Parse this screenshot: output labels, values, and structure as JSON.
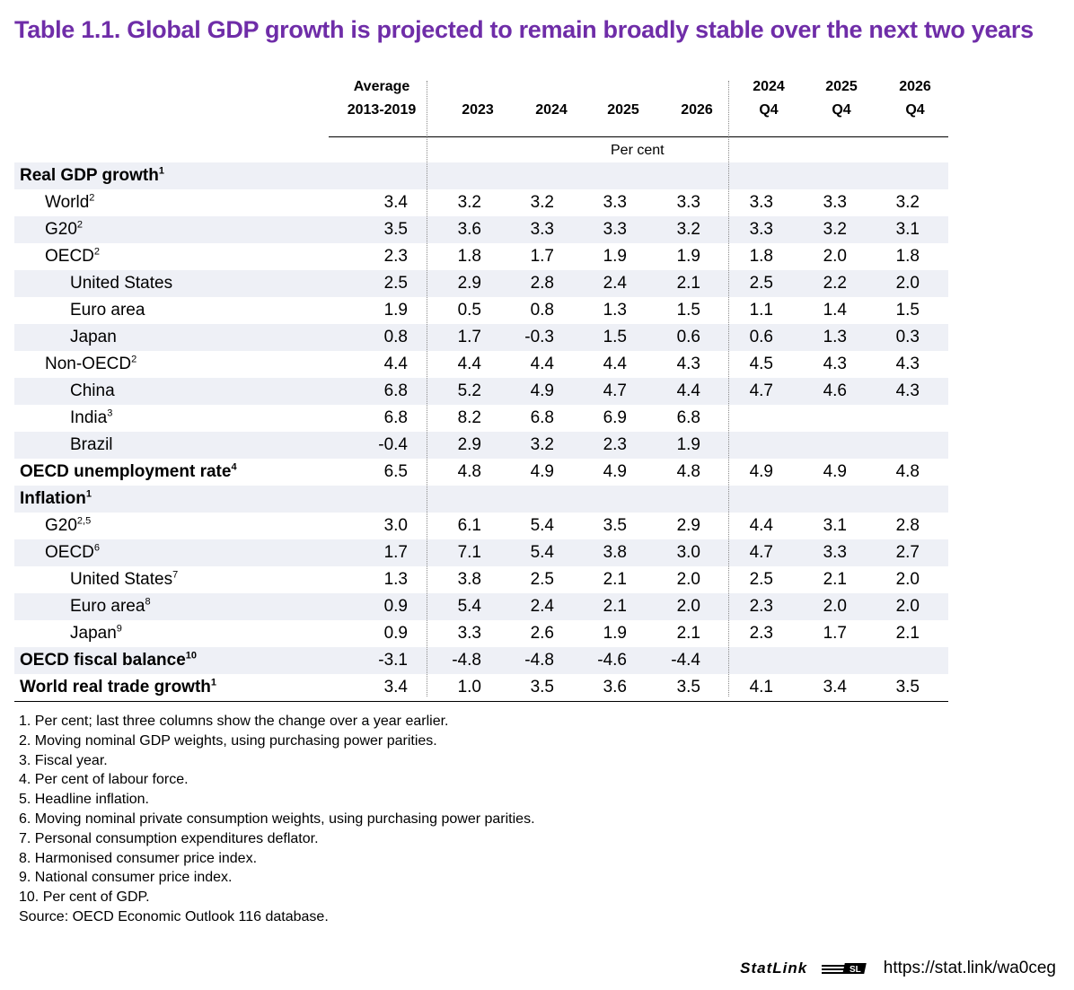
{
  "title": "Table 1.1. Global GDP growth is projected to remain broadly stable over the next two years",
  "columns": [
    {
      "l1": "Average",
      "l2": "2013-2019"
    },
    {
      "l1": "",
      "l2": "2023"
    },
    {
      "l1": "",
      "l2": "2024"
    },
    {
      "l1": "",
      "l2": "2025"
    },
    {
      "l1": "",
      "l2": "2026"
    },
    {
      "l1": "2024",
      "l2": "Q4"
    },
    {
      "l1": "2025",
      "l2": "Q4"
    },
    {
      "l1": "2026",
      "l2": "Q4"
    }
  ],
  "unit_label": "Per cent",
  "rows": [
    {
      "label": "Real GDP growth",
      "sup": "1",
      "level": 0,
      "bold": true,
      "values": [
        "",
        "",
        "",
        "",
        "",
        "",
        "",
        ""
      ]
    },
    {
      "label": "World",
      "sup": "2",
      "level": 1,
      "bold": false,
      "values": [
        "3.4",
        "3.2",
        "3.2",
        "3.3",
        "3.3",
        "3.3",
        "3.3",
        "3.2"
      ]
    },
    {
      "label": "G20",
      "sup": "2",
      "level": 1,
      "bold": false,
      "values": [
        "3.5",
        "3.6",
        "3.3",
        "3.3",
        "3.2",
        "3.3",
        "3.2",
        "3.1"
      ]
    },
    {
      "label": "OECD",
      "sup": "2",
      "level": 1,
      "bold": false,
      "values": [
        "2.3",
        "1.8",
        "1.7",
        "1.9",
        "1.9",
        "1.8",
        "2.0",
        "1.8"
      ]
    },
    {
      "label": "United States",
      "sup": "",
      "level": 2,
      "bold": false,
      "values": [
        "2.5",
        "2.9",
        "2.8",
        "2.4",
        "2.1",
        "2.5",
        "2.2",
        "2.0"
      ]
    },
    {
      "label": "Euro area",
      "sup": "",
      "level": 2,
      "bold": false,
      "values": [
        "1.9",
        "0.5",
        "0.8",
        "1.3",
        "1.5",
        "1.1",
        "1.4",
        "1.5"
      ]
    },
    {
      "label": "Japan",
      "sup": "",
      "level": 2,
      "bold": false,
      "values": [
        "0.8",
        "1.7",
        "-0.3",
        "1.5",
        "0.6",
        "0.6",
        "1.3",
        "0.3"
      ]
    },
    {
      "label": "Non-OECD",
      "sup": "2",
      "level": 1,
      "bold": false,
      "values": [
        "4.4",
        "4.4",
        "4.4",
        "4.4",
        "4.3",
        "4.5",
        "4.3",
        "4.3"
      ]
    },
    {
      "label": "China",
      "sup": "",
      "level": 2,
      "bold": false,
      "values": [
        "6.8",
        "5.2",
        "4.9",
        "4.7",
        "4.4",
        "4.7",
        "4.6",
        "4.3"
      ]
    },
    {
      "label": "India",
      "sup": "3",
      "level": 2,
      "bold": false,
      "values": [
        "6.8",
        "8.2",
        "6.8",
        "6.9",
        "6.8",
        "",
        "",
        ""
      ]
    },
    {
      "label": "Brazil",
      "sup": "",
      "level": 2,
      "bold": false,
      "values": [
        "-0.4",
        "2.9",
        "3.2",
        "2.3",
        "1.9",
        "",
        "",
        ""
      ]
    },
    {
      "label": "OECD unemployment rate",
      "sup": "4",
      "level": 0,
      "bold": true,
      "values": [
        "6.5",
        "4.8",
        "4.9",
        "4.9",
        "4.8",
        "4.9",
        "4.9",
        "4.8"
      ]
    },
    {
      "label": "Inflation",
      "sup": "1",
      "level": 0,
      "bold": true,
      "values": [
        "",
        "",
        "",
        "",
        "",
        "",
        "",
        ""
      ]
    },
    {
      "label": "G20",
      "sup": "2,5",
      "level": 1,
      "bold": false,
      "values": [
        "3.0",
        "6.1",
        "5.4",
        "3.5",
        "2.9",
        "4.4",
        "3.1",
        "2.8"
      ]
    },
    {
      "label": "OECD",
      "sup": "6",
      "level": 1,
      "bold": false,
      "values": [
        "1.7",
        "7.1",
        "5.4",
        "3.8",
        "3.0",
        "4.7",
        "3.3",
        "2.7"
      ]
    },
    {
      "label": "United States",
      "sup": "7",
      "level": 2,
      "bold": false,
      "values": [
        "1.3",
        "3.8",
        "2.5",
        "2.1",
        "2.0",
        "2.5",
        "2.1",
        "2.0"
      ]
    },
    {
      "label": "Euro area",
      "sup": "8",
      "level": 2,
      "bold": false,
      "values": [
        "0.9",
        "5.4",
        "2.4",
        "2.1",
        "2.0",
        "2.3",
        "2.0",
        "2.0"
      ]
    },
    {
      "label": "Japan",
      "sup": "9",
      "level": 2,
      "bold": false,
      "values": [
        "0.9",
        "3.3",
        "2.6",
        "1.9",
        "2.1",
        "2.3",
        "1.7",
        "2.1"
      ]
    },
    {
      "label": "OECD fiscal balance",
      "sup": "10",
      "level": 0,
      "bold": true,
      "values": [
        "-3.1",
        "-4.8",
        "-4.8",
        "-4.6",
        "-4.4",
        "",
        "",
        ""
      ]
    },
    {
      "label": "World real trade growth",
      "sup": "1",
      "level": 0,
      "bold": true,
      "values": [
        "3.4",
        "1.0",
        "3.5",
        "3.6",
        "3.5",
        "4.1",
        "3.4",
        "3.5"
      ]
    }
  ],
  "notes": [
    "1.  Per cent; last three columns show the change over a year earlier.",
    "2.  Moving nominal GDP weights, using purchasing power parities.",
    "3.  Fiscal year.",
    "4.  Per cent of labour force.",
    "5.  Headline inflation.",
    "6.  Moving nominal private consumption weights, using purchasing power parities.",
    "7.  Personal consumption expenditures deflator.",
    "8.  Harmonised consumer price index.",
    "9.  National consumer price index.",
    "10.  Per cent of GDP.",
    "Source: OECD Economic Outlook 116 database."
  ],
  "statlink": {
    "brand": "StatLink",
    "url": "https://stat.link/wa0ceg",
    "logo_icon": "statlink-logo-icon"
  }
}
